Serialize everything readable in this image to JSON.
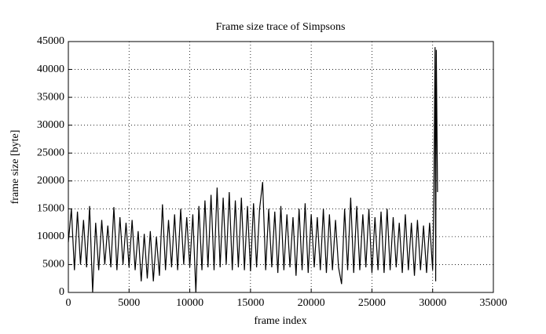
{
  "chart_data": {
    "type": "line",
    "title": "Frame size trace of Simpsons",
    "x_label": "frame index",
    "y_label": "frame size [byte]",
    "color": "#000000",
    "grid": true,
    "xlim": [
      0,
      35000
    ],
    "xticks": [
      0,
      5000,
      10000,
      15000,
      20000,
      25000,
      30000,
      35000
    ],
    "ylim": [
      0,
      45000
    ],
    "yticks": [
      0,
      5000,
      10000,
      15000,
      20000,
      25000,
      30000,
      35000,
      40000,
      45000
    ],
    "x": [
      0,
      250,
      500,
      750,
      1000,
      1250,
      1500,
      1750,
      2000,
      2250,
      2500,
      2750,
      3000,
      3250,
      3500,
      3750,
      4000,
      4250,
      4500,
      4750,
      5000,
      5250,
      5500,
      5750,
      6000,
      6250,
      6500,
      6750,
      7000,
      7250,
      7500,
      7750,
      8000,
      8250,
      8500,
      8750,
      9000,
      9250,
      9500,
      9750,
      10000,
      10250,
      10500,
      10750,
      11000,
      11250,
      11500,
      11750,
      12000,
      12250,
      12500,
      12750,
      13000,
      13250,
      13500,
      13750,
      14000,
      14250,
      14500,
      14750,
      15000,
      15250,
      15500,
      15750,
      16000,
      16250,
      16500,
      16750,
      17000,
      17250,
      17500,
      17750,
      18000,
      18250,
      18500,
      18750,
      19000,
      19250,
      19500,
      19750,
      20000,
      20250,
      20500,
      20750,
      21000,
      21250,
      21500,
      21750,
      22000,
      22250,
      22500,
      22750,
      23000,
      23250,
      23500,
      23750,
      24000,
      24250,
      24500,
      24750,
      25000,
      25250,
      25500,
      25750,
      26000,
      26250,
      26500,
      26750,
      27000,
      27250,
      27500,
      27750,
      28000,
      28250,
      28500,
      28750,
      29000,
      29250,
      29500,
      29750,
      30000,
      30100,
      30200,
      30250,
      30300,
      30400
    ],
    "values": [
      9000,
      15000,
      4000,
      14500,
      5000,
      13000,
      4500,
      15500,
      0,
      12500,
      4000,
      13000,
      5000,
      12000,
      4500,
      15300,
      4000,
      13500,
      5000,
      12500,
      4500,
      13000,
      4000,
      11000,
      2000,
      10500,
      2500,
      11000,
      2000,
      10000,
      3000,
      15800,
      4000,
      13000,
      4500,
      14000,
      4000,
      15000,
      5000,
      13500,
      4500,
      14000,
      0,
      15500,
      4000,
      16500,
      4500,
      17500,
      4000,
      18800,
      4500,
      17000,
      5000,
      18000,
      4000,
      16500,
      4500,
      17000,
      4000,
      15500,
      3800,
      16000,
      4500,
      15000,
      19800,
      4000,
      15000,
      4500,
      14500,
      3500,
      15500,
      4000,
      14000,
      4500,
      13500,
      3000,
      15000,
      4000,
      16000,
      3500,
      14000,
      4500,
      13500,
      4000,
      15000,
      3500,
      14000,
      4000,
      13000,
      4500,
      1500,
      15000,
      4000,
      17000,
      3500,
      15500,
      4000,
      14000,
      4500,
      15000,
      3500,
      13500,
      4000,
      14500,
      3500,
      15000,
      4000,
      13500,
      4500,
      12500,
      3500,
      14000,
      4000,
      12500,
      3000,
      13000,
      4000,
      12000,
      3500,
      12500,
      4000,
      17000,
      44000,
      2000,
      43500,
      18000
    ]
  }
}
